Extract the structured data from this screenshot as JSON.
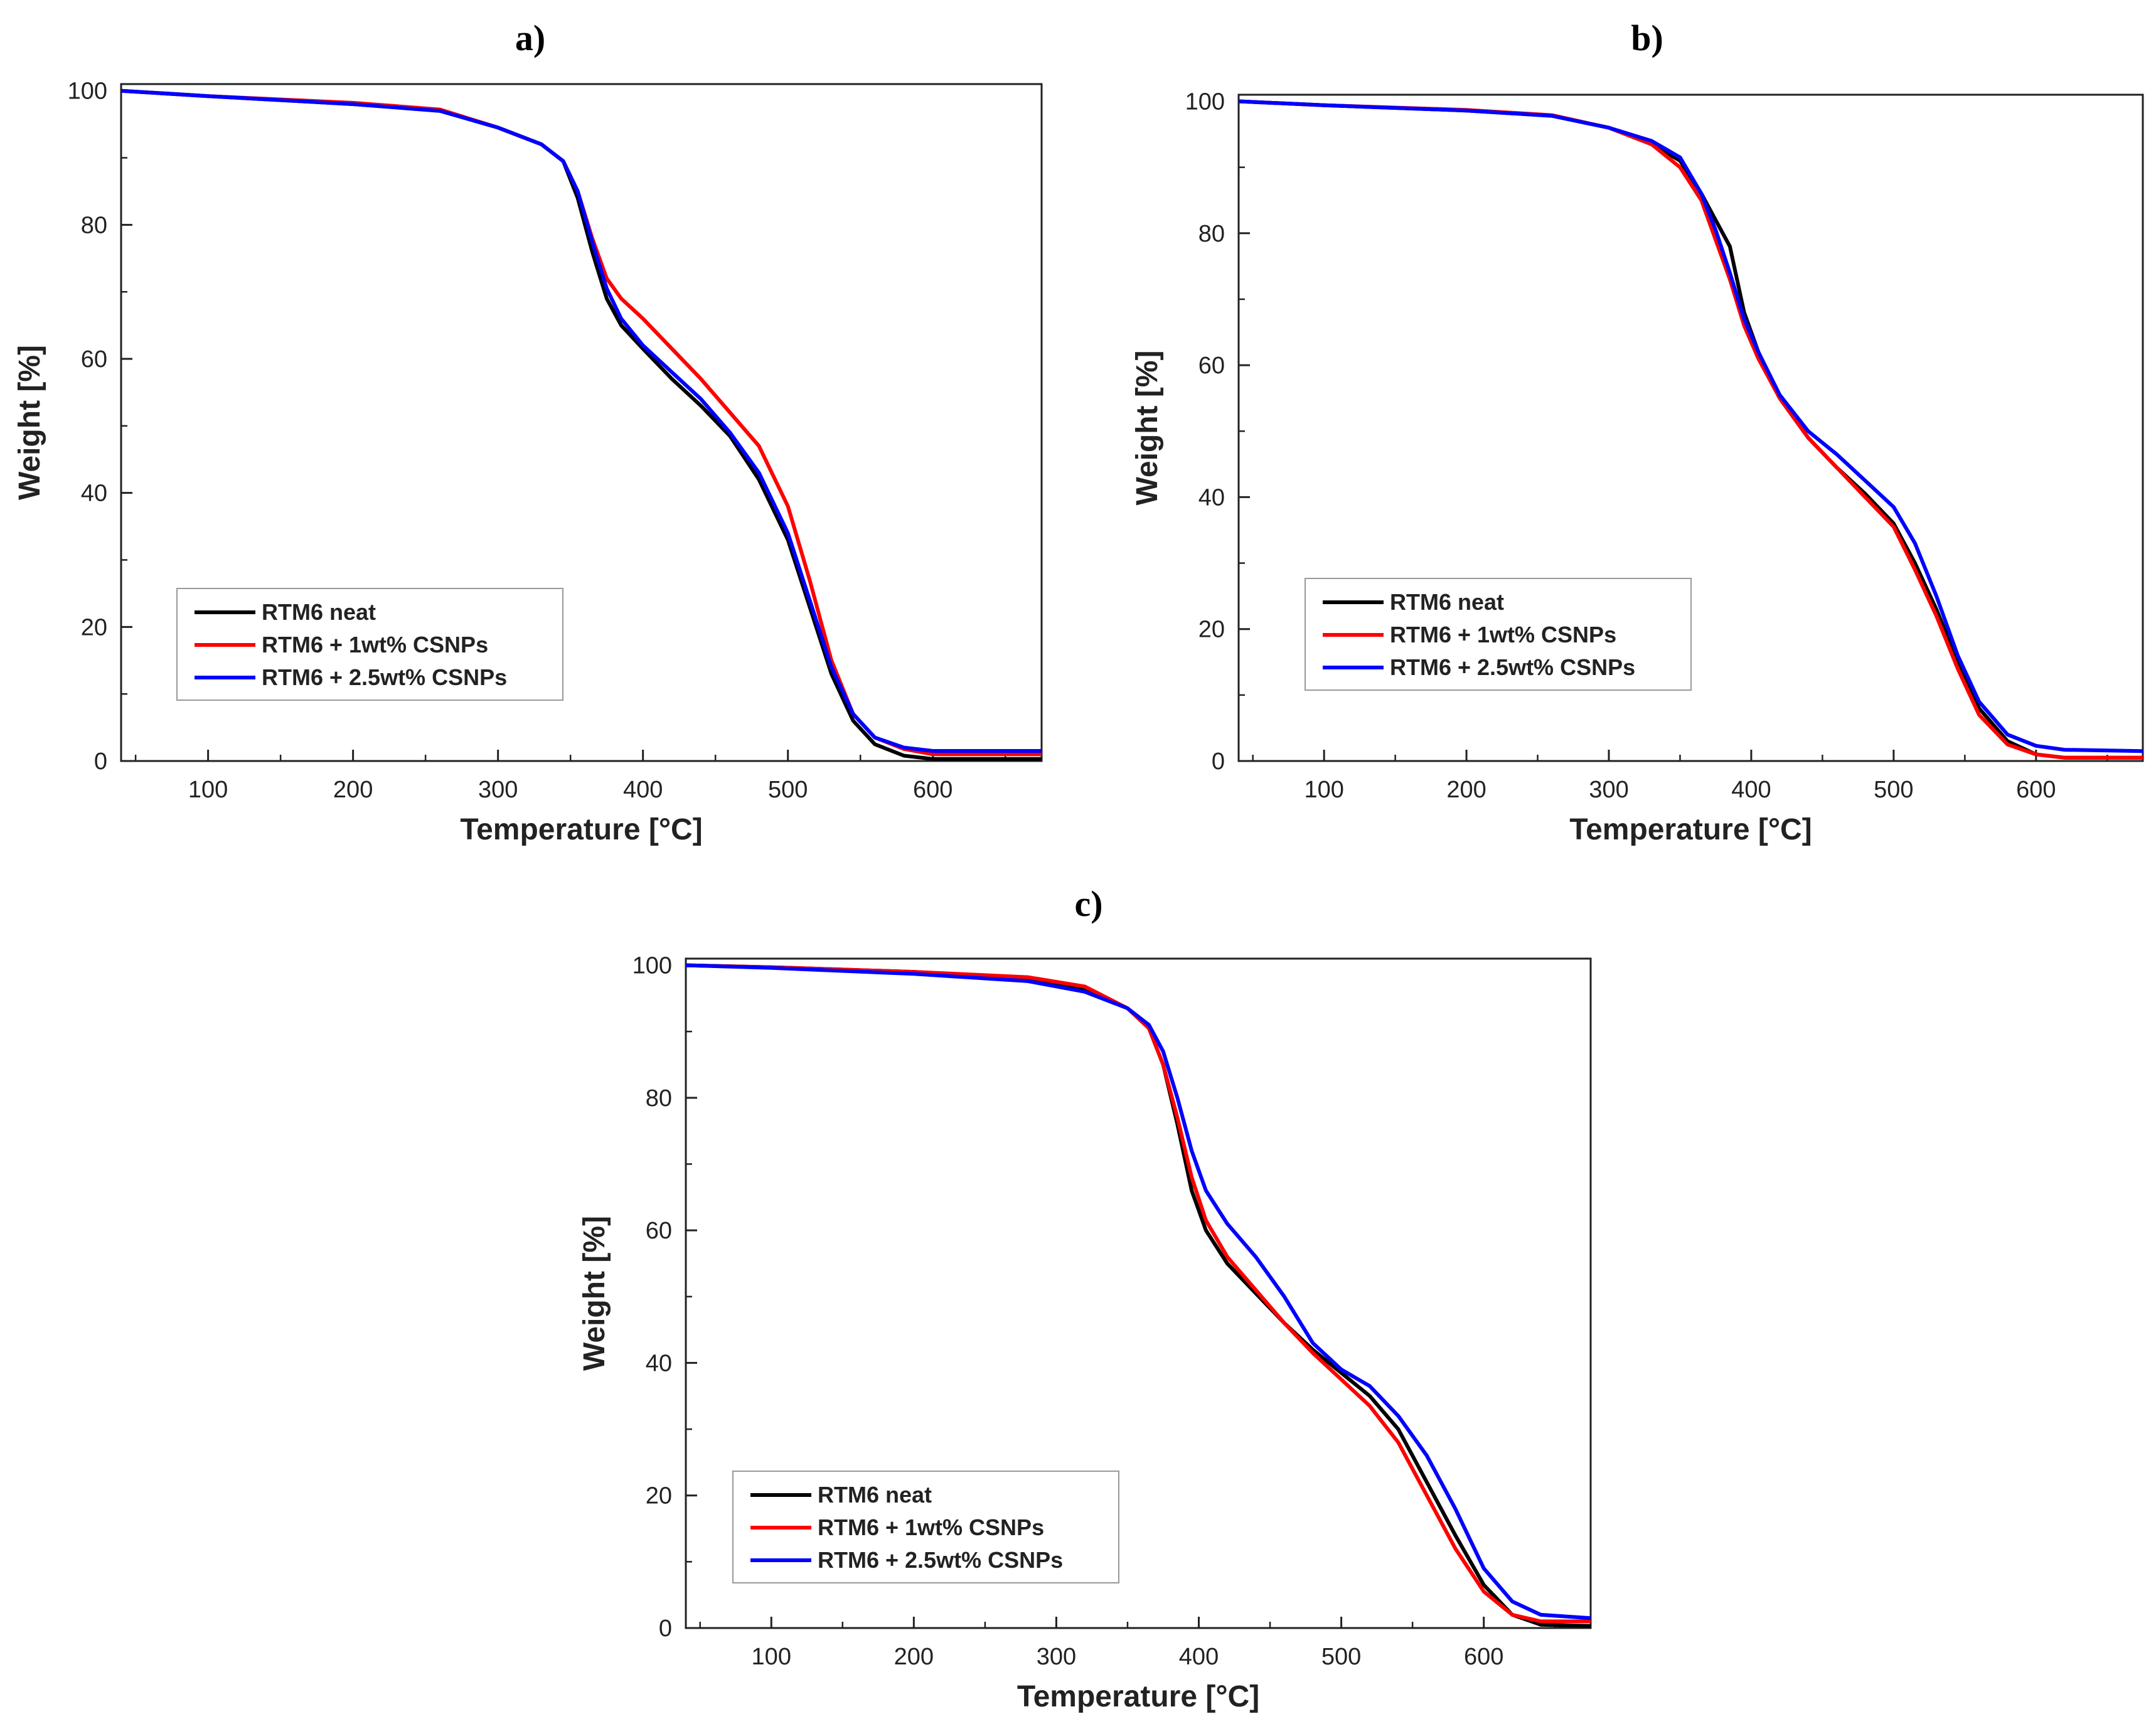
{
  "chart_data": [
    {
      "type": "line",
      "panel": "a)",
      "xlabel": "Temperature [°C]",
      "ylabel": "Weight [%]",
      "xlim": [
        40,
        675
      ],
      "ylim": [
        0,
        101
      ],
      "xticks": [
        100,
        200,
        300,
        400,
        500,
        600
      ],
      "yticks": [
        0,
        20,
        40,
        60,
        80,
        100
      ],
      "legend_position": "lower-left",
      "series": [
        {
          "name": "RTM6 neat",
          "color": "#000000",
          "points": [
            [
              40,
              100
            ],
            [
              100,
              99.2
            ],
            [
              200,
              98
            ],
            [
              260,
              97
            ],
            [
              300,
              94.5
            ],
            [
              330,
              92
            ],
            [
              345,
              89.5
            ],
            [
              355,
              84
            ],
            [
              365,
              76
            ],
            [
              375,
              69
            ],
            [
              385,
              65
            ],
            [
              400,
              61.5
            ],
            [
              420,
              57
            ],
            [
              440,
              53
            ],
            [
              460,
              48.5
            ],
            [
              480,
              42
            ],
            [
              500,
              33
            ],
            [
              515,
              23
            ],
            [
              530,
              13
            ],
            [
              545,
              6
            ],
            [
              560,
              2.5
            ],
            [
              580,
              0.8
            ],
            [
              600,
              0.3
            ],
            [
              675,
              0.3
            ]
          ]
        },
        {
          "name": "RTM6 + 1wt% CSNPs",
          "color": "#ff0000",
          "points": [
            [
              40,
              100
            ],
            [
              100,
              99.2
            ],
            [
              200,
              98.2
            ],
            [
              260,
              97.2
            ],
            [
              300,
              94.5
            ],
            [
              330,
              92
            ],
            [
              345,
              89.5
            ],
            [
              355,
              85
            ],
            [
              365,
              78
            ],
            [
              375,
              72
            ],
            [
              385,
              69
            ],
            [
              400,
              66
            ],
            [
              420,
              61.5
            ],
            [
              440,
              57
            ],
            [
              460,
              52
            ],
            [
              480,
              47
            ],
            [
              500,
              38
            ],
            [
              515,
              27
            ],
            [
              530,
              15
            ],
            [
              545,
              7
            ],
            [
              560,
              3.5
            ],
            [
              580,
              1.8
            ],
            [
              600,
              1
            ],
            [
              675,
              1
            ]
          ]
        },
        {
          "name": "RTM6 + 2.5wt% CSNPs",
          "color": "#0000ff",
          "points": [
            [
              40,
              100
            ],
            [
              100,
              99.2
            ],
            [
              200,
              98
            ],
            [
              260,
              97
            ],
            [
              300,
              94.5
            ],
            [
              330,
              92
            ],
            [
              345,
              89.5
            ],
            [
              355,
              85
            ],
            [
              365,
              77.5
            ],
            [
              375,
              70.5
            ],
            [
              385,
              66
            ],
            [
              400,
              62
            ],
            [
              420,
              58
            ],
            [
              440,
              54
            ],
            [
              460,
              49
            ],
            [
              480,
              43
            ],
            [
              500,
              34
            ],
            [
              515,
              24
            ],
            [
              530,
              14
            ],
            [
              545,
              7
            ],
            [
              560,
              3.5
            ],
            [
              580,
              2
            ],
            [
              600,
              1.5
            ],
            [
              675,
              1.5
            ]
          ]
        }
      ]
    },
    {
      "type": "line",
      "panel": "b)",
      "xlabel": "Temperature [°C]",
      "ylabel": "Weight [%]",
      "xlim": [
        40,
        675
      ],
      "ylim": [
        0,
        101
      ],
      "xticks": [
        100,
        200,
        300,
        400,
        500,
        600
      ],
      "yticks": [
        0,
        20,
        40,
        60,
        80,
        100
      ],
      "legend_position": "lower-left",
      "series": [
        {
          "name": "RTM6 neat",
          "color": "#000000",
          "points": [
            [
              40,
              100
            ],
            [
              100,
              99.4
            ],
            [
              200,
              98.6
            ],
            [
              260,
              97.8
            ],
            [
              300,
              96
            ],
            [
              330,
              93.5
            ],
            [
              350,
              91
            ],
            [
              365,
              86
            ],
            [
              375,
              82
            ],
            [
              385,
              78
            ],
            [
              395,
              68
            ],
            [
              405,
              62
            ],
            [
              420,
              55
            ],
            [
              440,
              49
            ],
            [
              460,
              44.5
            ],
            [
              480,
              40.5
            ],
            [
              500,
              36
            ],
            [
              515,
              30
            ],
            [
              530,
              23
            ],
            [
              545,
              15
            ],
            [
              560,
              8
            ],
            [
              580,
              3
            ],
            [
              600,
              1
            ],
            [
              620,
              0.5
            ],
            [
              675,
              0.5
            ]
          ]
        },
        {
          "name": "RTM6 + 1wt% CSNPs",
          "color": "#ff0000",
          "points": [
            [
              40,
              100
            ],
            [
              100,
              99.4
            ],
            [
              200,
              98.7
            ],
            [
              260,
              97.9
            ],
            [
              300,
              96
            ],
            [
              330,
              93.5
            ],
            [
              350,
              90
            ],
            [
              365,
              85
            ],
            [
              375,
              79
            ],
            [
              385,
              73
            ],
            [
              395,
              66
            ],
            [
              405,
              61
            ],
            [
              420,
              55
            ],
            [
              440,
              49
            ],
            [
              460,
              44.5
            ],
            [
              480,
              40
            ],
            [
              500,
              35.5
            ],
            [
              515,
              29
            ],
            [
              530,
              22
            ],
            [
              545,
              14
            ],
            [
              560,
              7
            ],
            [
              580,
              2.5
            ],
            [
              600,
              1
            ],
            [
              620,
              0.5
            ],
            [
              675,
              0.5
            ]
          ]
        },
        {
          "name": "RTM6 + 2.5wt% CSNPs",
          "color": "#0000ff",
          "points": [
            [
              40,
              100
            ],
            [
              100,
              99.4
            ],
            [
              200,
              98.6
            ],
            [
              260,
              97.8
            ],
            [
              300,
              96
            ],
            [
              330,
              94
            ],
            [
              350,
              91.5
            ],
            [
              365,
              86
            ],
            [
              375,
              80.5
            ],
            [
              385,
              74
            ],
            [
              395,
              67
            ],
            [
              405,
              62
            ],
            [
              420,
              55.5
            ],
            [
              440,
              50
            ],
            [
              460,
              46.5
            ],
            [
              480,
              42.5
            ],
            [
              500,
              38.5
            ],
            [
              515,
              33
            ],
            [
              530,
              25
            ],
            [
              545,
              16
            ],
            [
              560,
              9
            ],
            [
              580,
              4
            ],
            [
              600,
              2.3
            ],
            [
              620,
              1.7
            ],
            [
              675,
              1.5
            ]
          ]
        }
      ]
    },
    {
      "type": "line",
      "panel": "c)",
      "xlabel": "Temperature [°C]",
      "ylabel": "Weight [%]",
      "xlim": [
        40,
        675
      ],
      "ylim": [
        0,
        101
      ],
      "xticks": [
        100,
        200,
        300,
        400,
        500,
        600
      ],
      "yticks": [
        0,
        20,
        40,
        60,
        80,
        100
      ],
      "legend_position": "lower-left",
      "series": [
        {
          "name": "RTM6 neat",
          "color": "#000000",
          "points": [
            [
              40,
              100
            ],
            [
              100,
              99.7
            ],
            [
              200,
              99
            ],
            [
              280,
              98
            ],
            [
              320,
              96.5
            ],
            [
              350,
              93.5
            ],
            [
              365,
              90.5
            ],
            [
              375,
              85
            ],
            [
              385,
              76
            ],
            [
              395,
              66
            ],
            [
              405,
              60
            ],
            [
              420,
              55
            ],
            [
              440,
              50.5
            ],
            [
              460,
              46
            ],
            [
              480,
              42
            ],
            [
              500,
              38.5
            ],
            [
              520,
              35
            ],
            [
              540,
              30
            ],
            [
              560,
              22
            ],
            [
              580,
              14
            ],
            [
              600,
              6.5
            ],
            [
              620,
              2
            ],
            [
              640,
              0.5
            ],
            [
              675,
              0.3
            ]
          ]
        },
        {
          "name": "RTM6 + 1wt% CSNPs",
          "color": "#ff0000",
          "points": [
            [
              40,
              100
            ],
            [
              100,
              99.7
            ],
            [
              200,
              99
            ],
            [
              280,
              98.2
            ],
            [
              320,
              96.8
            ],
            [
              350,
              93.5
            ],
            [
              365,
              90.5
            ],
            [
              375,
              85
            ],
            [
              385,
              77
            ],
            [
              395,
              68
            ],
            [
              405,
              61.5
            ],
            [
              420,
              56
            ],
            [
              440,
              51
            ],
            [
              460,
              46
            ],
            [
              480,
              41.5
            ],
            [
              500,
              37.5
            ],
            [
              520,
              33.5
            ],
            [
              540,
              28
            ],
            [
              560,
              20
            ],
            [
              580,
              12
            ],
            [
              600,
              5.5
            ],
            [
              620,
              2
            ],
            [
              640,
              1
            ],
            [
              675,
              1
            ]
          ]
        },
        {
          "name": "RTM6 + 2.5wt% CSNPs",
          "color": "#0000ff",
          "points": [
            [
              40,
              100
            ],
            [
              100,
              99.6
            ],
            [
              200,
              98.7
            ],
            [
              280,
              97.6
            ],
            [
              320,
              96
            ],
            [
              350,
              93.5
            ],
            [
              365,
              91
            ],
            [
              375,
              87
            ],
            [
              385,
              80
            ],
            [
              395,
              72
            ],
            [
              405,
              66
            ],
            [
              420,
              61
            ],
            [
              440,
              56
            ],
            [
              460,
              50
            ],
            [
              480,
              43
            ],
            [
              500,
              39
            ],
            [
              520,
              36.5
            ],
            [
              540,
              32
            ],
            [
              560,
              26
            ],
            [
              580,
              18
            ],
            [
              600,
              9
            ],
            [
              620,
              4
            ],
            [
              640,
              2
            ],
            [
              675,
              1.5
            ]
          ]
        }
      ]
    }
  ]
}
